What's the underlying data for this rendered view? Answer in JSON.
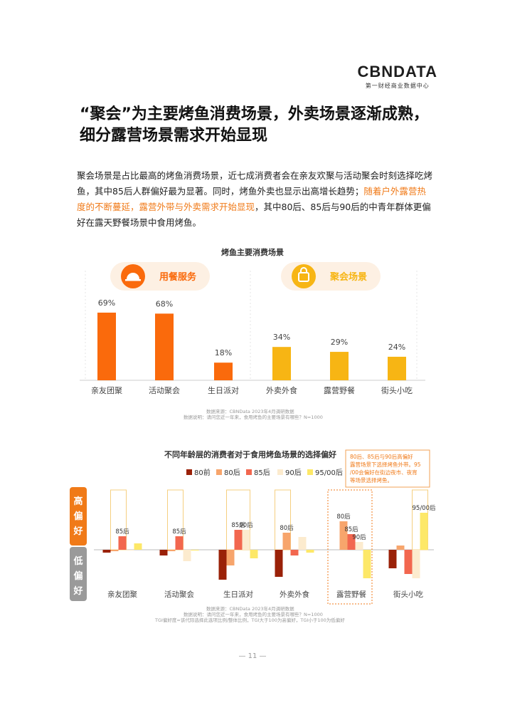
{
  "logo": {
    "brand": "CBNDATA",
    "sub": "第一财经商业数据中心"
  },
  "title_line1": "“聚会”为主要烤鱼消费场景，外卖场景逐渐成熟，",
  "title_line2": "细分露营场景需求开始显现",
  "intro": {
    "part1": "聚会场景是占比最高的烤鱼消费场景，近七成消费者会在亲友欢聚与活动聚会时刻选择吃烤鱼，其中85后人群偏好最为显著。同时，烤鱼外卖也显示出高增长趋势；",
    "highlight": "随着户外露营热度的不断蔓延，露营外带与外卖需求开始显现",
    "part2": "，其中80后、85后与90后的中青年群体更偏好在露天野餐场景中食用烤鱼。"
  },
  "colors": {
    "orange": "#fa6a0c",
    "yellow": "#f7b514",
    "accent": "#f07a18"
  },
  "chart_data": [
    {
      "type": "bar",
      "title": "烤鱼主要消费场景",
      "categories": [
        "亲友团聚",
        "活动聚会",
        "生日派对",
        "外卖外食",
        "露营野餐",
        "街头小吃"
      ],
      "values": [
        69,
        68,
        18,
        34,
        29,
        24
      ],
      "value_labels": [
        "69%",
        "68%",
        "18%",
        "34%",
        "29%",
        "24%"
      ],
      "unit": "%",
      "groups": [
        {
          "label": "用餐服务",
          "icon": "dining-icon",
          "color": "#fa6a0c"
        },
        {
          "label": "聚会场景",
          "icon": "party-icon",
          "color": "#f7b514"
        }
      ],
      "ylim": [
        0,
        75
      ],
      "source": "数据来源：CBNData 2023年4月调研数据",
      "note": "数据说明：请问您近一年来，食用烤鱼的主要场景有哪些？N=1000"
    },
    {
      "type": "bar",
      "title": "不同年龄层的消费者对于食用烤鱼场景的选择偏好",
      "categories": [
        "亲友团聚",
        "活动聚会",
        "生日派对",
        "外卖外食",
        "露营野餐",
        "街头小吃"
      ],
      "series": [
        {
          "name": "80前",
          "color": "#9a2108",
          "values": [
            -4,
            -8,
            -42,
            -38,
            0,
            -26
          ]
        },
        {
          "name": "80后",
          "color": "#f7a56c",
          "values": [
            -2,
            -2,
            -22,
            24,
            40,
            6
          ]
        },
        {
          "name": "85后",
          "color": "#f2674f",
          "values": [
            19,
            19,
            28,
            -8,
            22,
            -34
          ]
        },
        {
          "name": "90后",
          "color": "#fcebce",
          "values": [
            -1,
            -16,
            28,
            18,
            11,
            -40
          ]
        },
        {
          "name": "95/00后",
          "color": "#fde868",
          "values": [
            9,
            -1,
            -12,
            -4,
            -40,
            52
          ]
        }
      ],
      "bar_labels": [
        {
          "category": "亲友团聚",
          "series": "85后",
          "text": "85后"
        },
        {
          "category": "活动聚会",
          "series": "85后",
          "text": "85后"
        },
        {
          "category": "生日派对",
          "series": "85后",
          "text": "85后"
        },
        {
          "category": "生日派对",
          "series": "90后",
          "text": "90后"
        },
        {
          "category": "外卖外食",
          "series": "80后",
          "text": "80后"
        },
        {
          "category": "露营野餐",
          "series": "80后",
          "text": "80后"
        },
        {
          "category": "露营野餐",
          "series": "85后",
          "text": "85后"
        },
        {
          "category": "露营野餐",
          "series": "90后",
          "text": "90后"
        },
        {
          "category": "街头小吃",
          "series": "95/00后",
          "text": "95/00后"
        }
      ],
      "highlight_categories": [
        "露营野餐"
      ],
      "axis_labels": {
        "positive": "高偏好",
        "negative": "低偏好"
      },
      "legend_position": "top",
      "callout": "80后、85后与90后高偏好露营场景下选择烤鱼外带。95/00会偏好在街边夜市、夜宵等场景选择烤鱼。",
      "source": "数据来源：CBNData 2023年4月调研数据",
      "note": "数据说明：请问您近一年来，食用烤鱼的主要场景有哪些？N=1000",
      "tgi_note": "TGI偏好度=该代际选择此选项比例/整体比例，TGI大于100为高偏好，TGI小于100为低偏好"
    }
  ],
  "page_number": "— 11 —"
}
